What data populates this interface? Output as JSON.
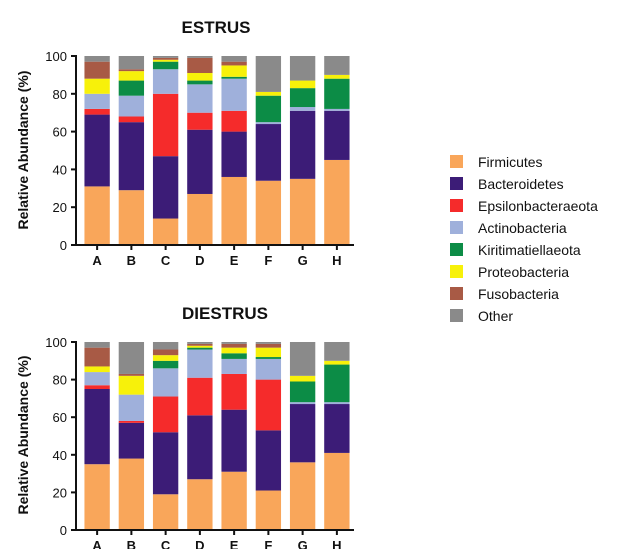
{
  "legend": {
    "entries": [
      {
        "name": "Firmicutes",
        "color": "#F9A65A"
      },
      {
        "name": "Bacteroidetes",
        "color": "#3C1C77"
      },
      {
        "name": "Epsilonbacteraeota",
        "color": "#F52B2B"
      },
      {
        "name": "Actinobacteria",
        "color": "#9FB0DB"
      },
      {
        "name": "Kiritimatiellaeota",
        "color": "#0C8C46"
      },
      {
        "name": "Proteobacteria",
        "color": "#F7F10A"
      },
      {
        "name": "Fusobacteria",
        "color": "#A85A45"
      },
      {
        "name": "Other",
        "color": "#8A8A8A"
      }
    ]
  },
  "chart_data": [
    {
      "type": "bar",
      "stacked": true,
      "title": "ESTRUS",
      "ylabel": "Relative Abundance (%)",
      "xlabel": "",
      "ylim": [
        0,
        100
      ],
      "yticks": [
        0,
        20,
        40,
        60,
        80,
        100
      ],
      "categories": [
        "A",
        "B",
        "C",
        "D",
        "E",
        "F",
        "G",
        "H"
      ],
      "series": [
        {
          "name": "Firmicutes",
          "values": [
            31,
            29,
            14,
            27,
            36,
            34,
            35,
            45
          ]
        },
        {
          "name": "Bacteroidetes",
          "values": [
            38,
            36,
            33,
            34,
            24,
            30,
            36,
            26
          ]
        },
        {
          "name": "Epsilonbacteraeota",
          "values": [
            3,
            3,
            33,
            9,
            11,
            0,
            0,
            0
          ]
        },
        {
          "name": "Actinobacteria",
          "values": [
            8,
            11,
            13,
            15,
            17,
            1,
            2,
            1
          ]
        },
        {
          "name": "Kiritimatiellaeota",
          "values": [
            0,
            8,
            4,
            2,
            1,
            14,
            10,
            16
          ]
        },
        {
          "name": "Proteobacteria",
          "values": [
            8,
            5,
            1,
            4,
            6,
            2,
            4,
            2
          ]
        },
        {
          "name": "Fusobacteria",
          "values": [
            9,
            1,
            1,
            8,
            2,
            0,
            0,
            0
          ]
        },
        {
          "name": "Other",
          "values": [
            3,
            7,
            1,
            1,
            3,
            19,
            13,
            10
          ]
        }
      ]
    },
    {
      "type": "bar",
      "stacked": true,
      "title": "DIESTRUS",
      "ylabel": "Relative Abundance (%)",
      "xlabel": "",
      "ylim": [
        0,
        100
      ],
      "yticks": [
        0,
        20,
        40,
        60,
        80,
        100
      ],
      "categories": [
        "A",
        "B",
        "C",
        "D",
        "E",
        "F",
        "G",
        "H"
      ],
      "series": [
        {
          "name": "Firmicutes",
          "values": [
            35,
            38,
            19,
            27,
            31,
            21,
            36,
            41
          ]
        },
        {
          "name": "Bacteroidetes",
          "values": [
            40,
            19,
            33,
            34,
            33,
            32,
            31,
            26
          ]
        },
        {
          "name": "Epsilonbacteraeota",
          "values": [
            2,
            1,
            19,
            20,
            19,
            27,
            0,
            0
          ]
        },
        {
          "name": "Actinobacteria",
          "values": [
            7,
            14,
            15,
            15,
            8,
            11,
            1,
            1
          ]
        },
        {
          "name": "Kiritimatiellaeota",
          "values": [
            0,
            0,
            4,
            1,
            3,
            1,
            11,
            20
          ]
        },
        {
          "name": "Proteobacteria",
          "values": [
            3,
            10,
            3,
            1,
            3,
            5,
            3,
            2
          ]
        },
        {
          "name": "Fusobacteria",
          "values": [
            10,
            1,
            3,
            1,
            2,
            2,
            0,
            0
          ]
        },
        {
          "name": "Other",
          "values": [
            3,
            17,
            4,
            1,
            1,
            1,
            18,
            10
          ]
        }
      ]
    }
  ]
}
